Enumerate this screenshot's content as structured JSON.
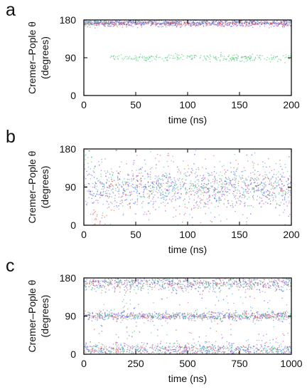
{
  "chart_data": [
    {
      "type": "scatter",
      "panel_label": "a",
      "title": "",
      "xlabel": "time (ns)",
      "ylabel": "Cremer–Pople θ",
      "ylabel_sub": "(degrees)",
      "xlim": [
        0,
        200
      ],
      "ylim": [
        0,
        180
      ],
      "xticks": [
        0,
        50,
        100,
        150,
        200
      ],
      "yticks": [
        0,
        90,
        180
      ],
      "grid": false,
      "legend": false,
      "series": [
        {
          "color": "#2c3fc9",
          "segments": [
            {
              "x_start": 0,
              "x_end": 200,
              "center": 173,
              "spread": 4
            }
          ]
        },
        {
          "color": "#9a3fd6",
          "segments": [
            {
              "x_start": 0,
              "x_end": 200,
              "center": 171,
              "spread": 4
            }
          ]
        },
        {
          "color": "#3a9bd9",
          "segments": [
            {
              "x_start": 0,
              "x_end": 200,
              "center": 174,
              "spread": 3
            }
          ]
        },
        {
          "color": "#33c264",
          "segments": [
            {
              "x_start": 0,
              "x_end": 25,
              "center": 172,
              "spread": 4
            },
            {
              "x_start": 25,
              "x_end": 200,
              "center": 90,
              "spread": 4
            }
          ]
        },
        {
          "color": "#e04a3a",
          "segments": [
            {
              "x_start": 0,
              "x_end": 200,
              "center": 172,
              "spread": 3
            }
          ]
        }
      ]
    },
    {
      "type": "scatter",
      "panel_label": "b",
      "title": "",
      "xlabel": "time (ns)",
      "ylabel": "Cremer–Pople θ",
      "ylabel_sub": "(degrees)",
      "xlim": [
        0,
        200
      ],
      "ylim": [
        0,
        180
      ],
      "xticks": [
        0,
        50,
        100,
        150,
        200
      ],
      "yticks": [
        0,
        90,
        180
      ],
      "grid": false,
      "legend": false,
      "series": [
        {
          "color": "#2c3fc9",
          "segments": [
            {
              "x_start": 0,
              "x_end": 200,
              "center": 88,
              "spread": 22
            }
          ]
        },
        {
          "color": "#9a3fd6",
          "segments": [
            {
              "x_start": 0,
              "x_end": 200,
              "center": 88,
              "spread": 26
            }
          ]
        },
        {
          "color": "#3a9bd9",
          "segments": [
            {
              "x_start": 0,
              "x_end": 200,
              "center": 90,
              "spread": 20
            }
          ]
        },
        {
          "color": "#33c264",
          "segments": [
            {
              "x_start": 0,
              "x_end": 8,
              "center": 165,
              "spread": 12
            },
            {
              "x_start": 8,
              "x_end": 200,
              "center": 90,
              "spread": 24
            }
          ]
        },
        {
          "color": "#e04a3a",
          "segments": [
            {
              "x_start": 8,
              "x_end": 22,
              "center": 15,
              "spread": 12
            },
            {
              "x_start": 22,
              "x_end": 200,
              "center": 88,
              "spread": 28
            }
          ]
        }
      ]
    },
    {
      "type": "scatter",
      "panel_label": "c",
      "title": "",
      "xlabel": "time (ns)",
      "ylabel": "Cremer–Pople θ",
      "ylabel_sub": "(degrees)",
      "xlim": [
        0,
        1000
      ],
      "ylim": [
        0,
        180
      ],
      "xticks": [
        0,
        250,
        500,
        750,
        1000
      ],
      "yticks": [
        0,
        90,
        180
      ],
      "grid": false,
      "legend": false,
      "series": [
        {
          "color": "#2c3fc9",
          "bands": [
            {
              "center": 168,
              "spread": 9
            },
            {
              "center": 90,
              "spread": 5
            },
            {
              "center": 10,
              "spread": 8
            }
          ]
        },
        {
          "color": "#9a3fd6",
          "bands": [
            {
              "center": 168,
              "spread": 9
            },
            {
              "center": 90,
              "spread": 5
            },
            {
              "center": 10,
              "spread": 8
            }
          ]
        },
        {
          "color": "#3a9bd9",
          "bands": [
            {
              "center": 168,
              "spread": 9
            },
            {
              "center": 90,
              "spread": 5
            },
            {
              "center": 10,
              "spread": 8
            }
          ]
        },
        {
          "color": "#33c264",
          "bands": [
            {
              "center": 168,
              "spread": 9
            },
            {
              "center": 90,
              "spread": 5
            },
            {
              "center": 10,
              "spread": 8
            }
          ]
        },
        {
          "color": "#e04a3a",
          "bands": [
            {
              "center": 168,
              "spread": 9
            },
            {
              "center": 90,
              "spread": 5
            },
            {
              "center": 10,
              "spread": 8
            }
          ]
        }
      ]
    }
  ]
}
